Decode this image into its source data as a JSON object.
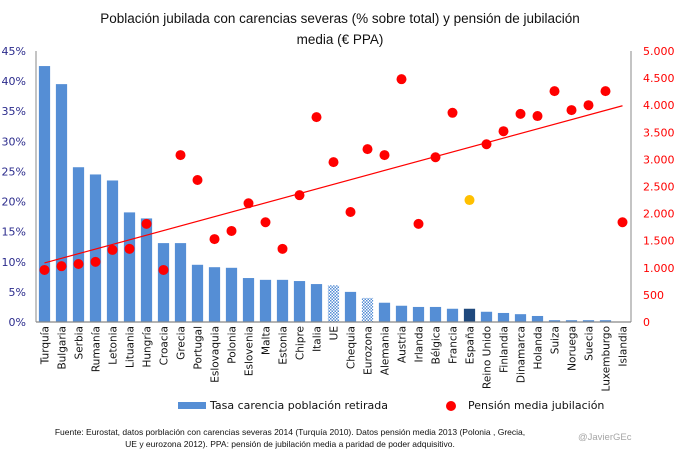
{
  "chart_data": {
    "type": "bar",
    "title": "Población jubilada con carencias severas (% sobre total) y pensión de jubilación media (€ PPA)",
    "categories": [
      "Turquía",
      "Bulgaria",
      "Serbia",
      "Rumanía",
      "Letonia",
      "Lituania",
      "Hungría",
      "Croacia",
      "Grecia",
      "Portugal",
      "Eslovaquia",
      "Polonia",
      "Eslovenia",
      "Malta",
      "Estonia",
      "Chipre",
      "Italia",
      "UE",
      "Chequia",
      "Eurozona",
      "Alemania",
      "Austria",
      "Irlanda",
      "Bélgica",
      "Francia",
      "España",
      "Reino Unido",
      "Finlandia",
      "Dinamarca",
      "Holanda",
      "Suiza",
      "Noruega",
      "Suecia",
      "Luxemburgo",
      "Islandia"
    ],
    "series": [
      {
        "name": "Tasa carencia población retirada",
        "type": "bar",
        "axis": "left",
        "color": "#558ed5",
        "values": [
          42.5,
          39.5,
          25.7,
          24.5,
          23.5,
          18.2,
          17.2,
          13.1,
          13.1,
          9.5,
          9.1,
          9.0,
          7.3,
          7.0,
          7.0,
          6.8,
          6.3,
          6.1,
          5.0,
          4.0,
          3.2,
          2.7,
          2.5,
          2.5,
          2.2,
          2.2,
          1.7,
          1.5,
          1.3,
          1.0,
          0.3,
          0.3,
          0.3,
          0.3,
          0.0
        ],
        "hatched": [
          "UE",
          "Eurozona"
        ],
        "highlight": {
          "category": "España",
          "color": "#1f497d"
        }
      },
      {
        "name": "Pensión media jubilación",
        "type": "scatter",
        "axis": "right",
        "color": "#ff0000",
        "values": [
          960,
          1030,
          1070,
          1110,
          1330,
          1350,
          1810,
          960,
          3080,
          2620,
          1530,
          1680,
          2190,
          1840,
          1350,
          2340,
          3780,
          2950,
          2030,
          3190,
          3080,
          4480,
          1810,
          3040,
          3860,
          2250,
          3280,
          3520,
          3840,
          3800,
          4260,
          3910,
          4000,
          4260,
          1840
        ],
        "highlight": {
          "category": "España",
          "color": "#ffc000"
        }
      }
    ],
    "trendline": {
      "series": "Pensión media jubilación",
      "type": "linear",
      "start": 1090,
      "end": 3990,
      "color": "#ff0000"
    },
    "y_left": {
      "ylim": [
        0,
        45
      ],
      "ticks": [
        "0%",
        "5%",
        "10%",
        "15%",
        "20%",
        "25%",
        "30%",
        "35%",
        "40%",
        "45%"
      ],
      "color": "#2b2b8c"
    },
    "y_right": {
      "ylim": [
        0,
        5000
      ],
      "ticks": [
        "0",
        "500",
        "1.000",
        "1.500",
        "2.000",
        "2.500",
        "3.000",
        "3.500",
        "4.000",
        "4.500",
        "5.000"
      ],
      "color": "#ff0000"
    },
    "xlabel": "",
    "grid": false,
    "legend": {
      "placement": "bottom",
      "entries": [
        "Tasa carencia población retirada",
        "Pensión media jubilación"
      ]
    }
  },
  "title_line1": "Población jubilada con carencias severas (% sobre total) y pensión de jubilación",
  "title_line2": "media (€ PPA)",
  "legend": {
    "bar_label": "Tasa carencia población retirada",
    "dot_label": "Pensión media jubilación"
  },
  "footnote_line1": "Fuente: Eurostat, datos porblación con carencias severas 2014 (Turquía 2010). Datos pensión media 2013 (Polonia , Grecia,",
  "footnote_line2": "UE y eurozona 2012). PPA: pensión de jubilación media a paridad de poder adquisitivo.",
  "credit": "@JavierGEc"
}
